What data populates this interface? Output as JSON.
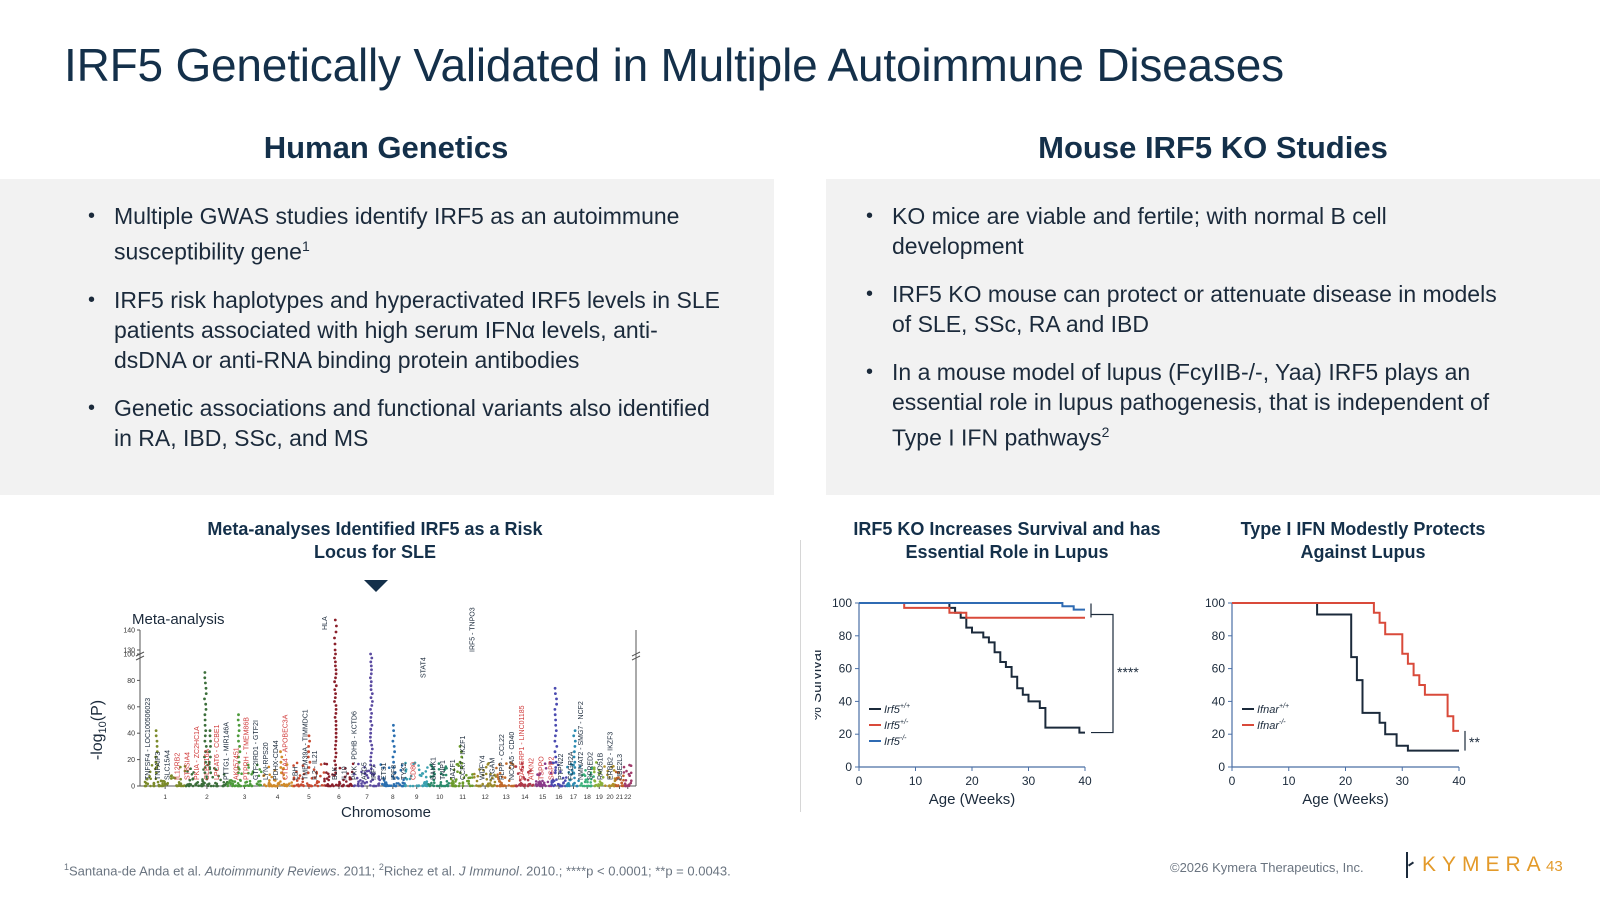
{
  "title": {
    "main": "IRF5 Genetically Validated in Multiple Autoimmune Diseases"
  },
  "left": {
    "heading": "Human Genetics",
    "bullets": [
      {
        "text": "Multiple GWAS studies identify IRF5 as an autoimmune susceptibility gene",
        "sup": "1"
      },
      {
        "text": "IRF5 risk haplotypes and hyperactivated IRF5 levels in SLE patients associated with high serum IFNα levels, anti-dsDNA or anti-RNA binding protein antibodies",
        "sup": ""
      },
      {
        "text": "Genetic associations and functional variants also identified in RA, IBD, SSc, and MS",
        "sup": ""
      }
    ]
  },
  "right": {
    "heading": "Mouse IRF5 KO Studies",
    "bullets": [
      {
        "text": "KO mice are viable and fertile; with normal B cell development",
        "sup": ""
      },
      {
        "text": "IRF5 KO mouse can protect or attenuate disease in models of SLE, SSc, RA and IBD",
        "sup": ""
      },
      {
        "text": "In a mouse model of lupus (FcyIIB-/-, Yaa) IRF5 plays an essential role in lupus pathogenesis, that is independent of Type I IFN pathways",
        "sup": "2"
      }
    ]
  },
  "manhattan": {
    "title_line1": "Meta-analyses Identified IRF5 as a Risk",
    "title_line2": "Locus for SLE",
    "panel_label": "Meta-analysis",
    "ylabel": "-log10(P)",
    "xlabel": "Chromosome"
  },
  "chart_data": [
    {
      "type": "scatter",
      "title": "Meta-analyses Identified IRF5 as a Risk Locus for SLE",
      "xlabel": "Chromosome",
      "ylabel": "-log10(P)",
      "panel": "Meta-analysis",
      "y_ticks": [
        0,
        20,
        40,
        60,
        80,
        100,
        130,
        140
      ],
      "x_ticks": [
        "1",
        "2",
        "3",
        "4",
        "5",
        "6",
        "7",
        "8",
        "9",
        "10",
        "11",
        "12",
        "13",
        "14",
        "15",
        "16",
        "17",
        "18",
        "19",
        "20",
        "21",
        "22"
      ],
      "peaks": [
        {
          "chromosome": 1,
          "y": 45
        },
        {
          "chromosome": 2,
          "y": 42
        },
        {
          "chromosome": 2,
          "y": 88
        },
        {
          "chromosome": 3,
          "y": 55
        },
        {
          "chromosome": 4,
          "y": 28
        },
        {
          "chromosome": 5,
          "y": 38
        },
        {
          "chromosome": 6,
          "y": 145
        },
        {
          "chromosome": 7,
          "y": 118
        },
        {
          "chromosome": 8,
          "y": 46
        },
        {
          "chromosome": 11,
          "y": 30
        },
        {
          "chromosome": 16,
          "y": 75
        },
        {
          "chromosome": 17,
          "y": 42
        }
      ],
      "highlight": "IRF5 - TNPO3",
      "gene_labels": {
        "black": [
          "PTPN22",
          "FCGR2A",
          "TNFSF4 - LOC100506023",
          "NMNAT2 - SMG7 - NCF2",
          "IL10",
          "LBH",
          "SPRED2",
          "STAT4",
          "PXK - PDHB - KCTD6",
          "TMEM39A - TIMMDC1",
          "BANK1",
          "IL2 - IL21",
          "TNIP1",
          "PTTG1 - MIR146A",
          "HLA",
          "ATG5",
          "TNFAIP3",
          "JAZF1",
          "CCR7 - IKZF1",
          "GTF2IRD1 - GTF2I",
          "IRF5 - TNPO3",
          "LYN-RPS20",
          "BLK",
          "WDFY4",
          "IRF7",
          "PDHX-CD44",
          "ETS1",
          "SLC15A4",
          "RAD51B",
          "ITGAM",
          "PLPP - CCL22",
          "IRF8",
          "TYK2",
          "ERBB2 - IKZF3",
          "NCOA5 - CD40",
          "UBE2L3"
        ],
        "red": [
          "IL12RB2",
          "RASGRP1 - LINC01185",
          "CD80",
          "ST8SIA4",
          "PKIA - ZC2HC1A",
          "AK057451",
          "ATXN2",
          "CLEC16A",
          "TSPPO",
          "SGPP2",
          "LPCAT6 - CCBE1",
          "PTPRH - TMEM86B",
          "CTLA4 - APOBEC3A"
        ]
      }
    },
    {
      "type": "line",
      "title": "IRF5 KO Increases Survival and has Essential Role in Lupus",
      "xlabel": "Age (Weeks)",
      "ylabel": "% Survival",
      "xlim": [
        0,
        40
      ],
      "ylim": [
        0,
        100
      ],
      "x_ticks": [
        0,
        10,
        20,
        30,
        40
      ],
      "y_ticks": [
        0,
        20,
        40,
        60,
        80,
        100
      ],
      "legend": "bottom-left",
      "significance": "****",
      "series": [
        {
          "name": "Irf5+/+",
          "base": "Irf5",
          "sup": "+/+",
          "color": "#1b2a3b",
          "points": [
            [
              0,
              100
            ],
            [
              16,
              100
            ],
            [
              16,
              97
            ],
            [
              17,
              97
            ],
            [
              17,
              94
            ],
            [
              18,
              94
            ],
            [
              18,
              91
            ],
            [
              19,
              91
            ],
            [
              19,
              85
            ],
            [
              20,
              85
            ],
            [
              20,
              82
            ],
            [
              22,
              82
            ],
            [
              22,
              79
            ],
            [
              23,
              79
            ],
            [
              23,
              76
            ],
            [
              24,
              76
            ],
            [
              24,
              70
            ],
            [
              25,
              70
            ],
            [
              25,
              64
            ],
            [
              26,
              64
            ],
            [
              26,
              61
            ],
            [
              27,
              61
            ],
            [
              27,
              55
            ],
            [
              28,
              55
            ],
            [
              28,
              48
            ],
            [
              29,
              48
            ],
            [
              29,
              44
            ],
            [
              30,
              44
            ],
            [
              30,
              40
            ],
            [
              32,
              40
            ],
            [
              32,
              36
            ],
            [
              33,
              36
            ],
            [
              33,
              24
            ],
            [
              39,
              24
            ],
            [
              39,
              21
            ],
            [
              40,
              21
            ]
          ]
        },
        {
          "name": "Irf5+/-",
          "base": "Irf5",
          "sup": "+/-",
          "color": "#d94a3a",
          "points": [
            [
              0,
              100
            ],
            [
              8,
              100
            ],
            [
              8,
              97
            ],
            [
              16,
              97
            ],
            [
              16,
              94
            ],
            [
              19,
              94
            ],
            [
              19,
              91
            ],
            [
              40,
              91
            ]
          ]
        },
        {
          "name": "Irf5-/-",
          "base": "Irf5",
          "sup": "-/-",
          "color": "#2f6bb3",
          "points": [
            [
              0,
              100
            ],
            [
              36,
              100
            ],
            [
              36,
              98
            ],
            [
              38,
              98
            ],
            [
              38,
              96
            ],
            [
              40,
              96
            ]
          ]
        }
      ]
    },
    {
      "type": "line",
      "title": "Type I IFN Modestly Protects Against Lupus",
      "xlabel": "Age (Weeks)",
      "ylabel": "% Survival",
      "xlim": [
        0,
        40
      ],
      "ylim": [
        0,
        100
      ],
      "x_ticks": [
        0,
        10,
        20,
        30,
        40
      ],
      "y_ticks": [
        0,
        20,
        40,
        60,
        80,
        100
      ],
      "legend": "bottom-left",
      "significance": "**",
      "series": [
        {
          "name": "Ifnar+/+",
          "base": "Ifnar",
          "sup": "+/+",
          "color": "#1b2a3b",
          "points": [
            [
              0,
              100
            ],
            [
              15,
              100
            ],
            [
              15,
              93
            ],
            [
              21,
              93
            ],
            [
              21,
              67
            ],
            [
              22,
              67
            ],
            [
              22,
              53
            ],
            [
              23,
              53
            ],
            [
              23,
              33
            ],
            [
              26,
              33
            ],
            [
              26,
              27
            ],
            [
              27,
              27
            ],
            [
              27,
              20
            ],
            [
              29,
              20
            ],
            [
              29,
              13
            ],
            [
              31,
              13
            ],
            [
              31,
              10
            ],
            [
              40,
              10
            ]
          ]
        },
        {
          "name": "Ifnar-/-",
          "base": "Ifnar",
          "sup": "-/-",
          "color": "#d94a3a",
          "points": [
            [
              0,
              100
            ],
            [
              25,
              100
            ],
            [
              25,
              94
            ],
            [
              26,
              94
            ],
            [
              26,
              88
            ],
            [
              27,
              88
            ],
            [
              27,
              81
            ],
            [
              30,
              81
            ],
            [
              30,
              69
            ],
            [
              31,
              69
            ],
            [
              31,
              63
            ],
            [
              32,
              63
            ],
            [
              32,
              56
            ],
            [
              33,
              56
            ],
            [
              33,
              50
            ],
            [
              34,
              50
            ],
            [
              34,
              44
            ],
            [
              38,
              44
            ],
            [
              38,
              31
            ],
            [
              39,
              31
            ],
            [
              39,
              22
            ],
            [
              40,
              22
            ]
          ]
        }
      ]
    }
  ],
  "footer": {
    "ref1_sup": "1",
    "ref1_authors": "Santana-de Anda et al. ",
    "ref1_journal": "Autoimmunity Reviews",
    "ref1_year": ". 2011; ",
    "ref2_sup": "2",
    "ref2_authors": "Richez et al. ",
    "ref2_journal": "J Immunol",
    "ref2_year": ". 2010.; ",
    "pvals": "****p < 0.0001; **p = 0.0043.",
    "copyright": "©2026 Kymera Therapeutics, Inc.",
    "logo": "KYMERA",
    "page_number": "43"
  }
}
